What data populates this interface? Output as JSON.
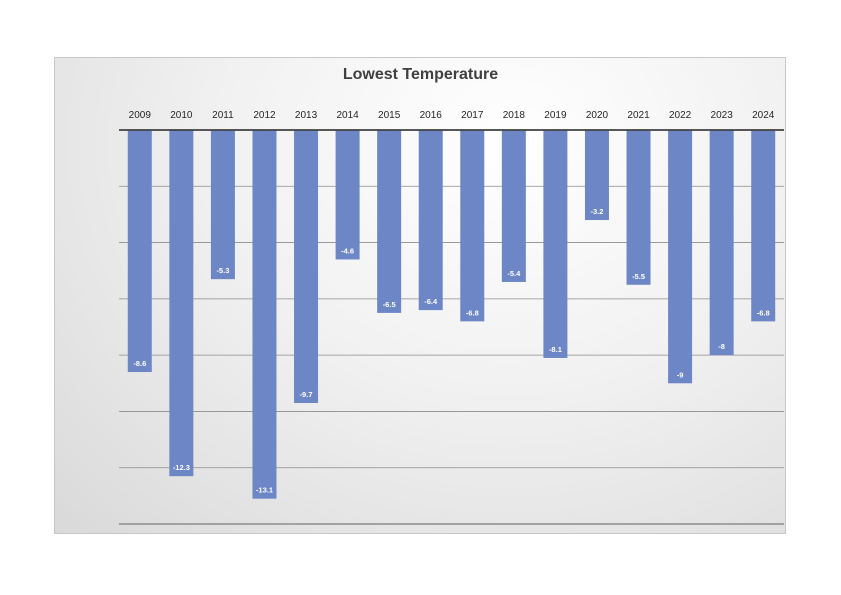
{
  "chart_data": {
    "type": "bar",
    "title": "Lowest Temperature",
    "categories": [
      "2009",
      "2010",
      "2011",
      "2012",
      "2013",
      "2014",
      "2015",
      "2016",
      "2017",
      "2018",
      "2019",
      "2020",
      "2021",
      "2022",
      "2023",
      "2024"
    ],
    "values": [
      -8.6,
      -12.3,
      -5.3,
      -13.1,
      -9.7,
      -4.6,
      -6.5,
      -6.4,
      -6.8,
      -5.4,
      -8.1,
      -3.2,
      -5.5,
      -9,
      -8,
      -6.8
    ],
    "data_labels": [
      "-8.6",
      "-12.3",
      "-5.3",
      "-13.1",
      "-9.7",
      "-4.6",
      "-6.5",
      "-6.4",
      "-6.8",
      "-5.4",
      "-8.1",
      "-3.2",
      "-5.5",
      "-9",
      "-8",
      "-6.8"
    ],
    "ylim": [
      -14,
      0
    ],
    "y_gridline_step": 2,
    "y_tick_labels_shown": false,
    "category_axis_position": "top",
    "legend": "none",
    "grid": true,
    "bar_color": "#6d87c6",
    "gridline_color": "#8c8c8c",
    "axis_color": "#404040"
  }
}
